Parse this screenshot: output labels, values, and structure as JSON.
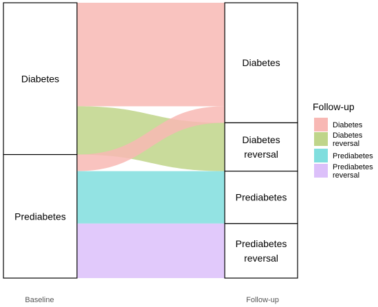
{
  "chart_data": {
    "type": "alluvial",
    "axes": [
      "Baseline",
      "Follow-up"
    ],
    "strata": {
      "baseline": [
        {
          "label": "Diabetes",
          "key": "diabetes"
        },
        {
          "label": "Prediabetes",
          "key": "prediabetes"
        }
      ],
      "followup": [
        {
          "label": "Diabetes",
          "key": "diabetes"
        },
        {
          "label": "Diabetes reversal",
          "key": "diabetes_reversal"
        },
        {
          "label": "Prediabetes",
          "key": "prediabetes"
        },
        {
          "label": "Prediabetes reversal",
          "key": "prediabetes_reversal"
        }
      ]
    },
    "flows": [
      {
        "from": "diabetes",
        "to": "diabetes",
        "value": 150
      },
      {
        "from": "diabetes",
        "to": "diabetes_reversal",
        "value": 70
      },
      {
        "from": "prediabetes",
        "to": "diabetes",
        "value": 24
      },
      {
        "from": "prediabetes",
        "to": "diabetes_reversal",
        "value": 0
      },
      {
        "from": "prediabetes",
        "to": "prediabetes",
        "value": 76
      },
      {
        "from": "prediabetes",
        "to": "prediabetes_reversal",
        "value": 79
      }
    ],
    "order": [
      "diabetes",
      "diabetes_reversal",
      "prediabetes",
      "prediabetes_reversal"
    ],
    "legend": {
      "title": "Follow-up",
      "position": "right",
      "items": [
        {
          "label": "Diabetes",
          "key": "diabetes",
          "color": "#F8B8B4"
        },
        {
          "label": "Diabetes reversal",
          "key": "diabetes_reversal",
          "color": "#BFD58A"
        },
        {
          "label": "Prediabetes",
          "key": "prediabetes",
          "color": "#80DEDE"
        },
        {
          "label": "Prediabetes reversal",
          "key": "prediabetes_reversal",
          "color": "#DCC0FA"
        }
      ]
    }
  }
}
